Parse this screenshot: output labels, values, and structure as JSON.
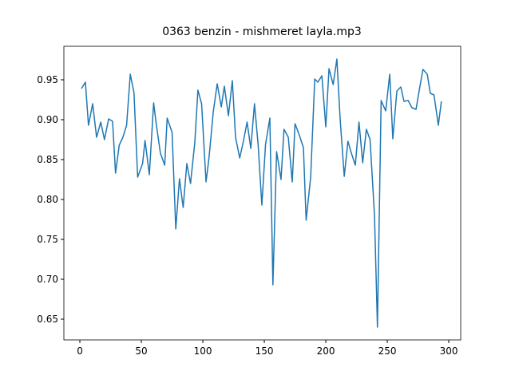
{
  "chart_data": {
    "type": "line",
    "title": "0363 benzin - mishmeret layla.mp3",
    "x": [
      1.3,
      4.5,
      7,
      10.4,
      13.6,
      17,
      20,
      23.4,
      26.6,
      29,
      32,
      35,
      38,
      41,
      44,
      47,
      51,
      53,
      56.5,
      60,
      62,
      65.5,
      69,
      71,
      75,
      78,
      81,
      84,
      87,
      90,
      93.5,
      96,
      99,
      102.6,
      105,
      108.5,
      111.7,
      115,
      117.5,
      120.8,
      124,
      126.6,
      130,
      133,
      136,
      139,
      142,
      145,
      148,
      151,
      154.5,
      157,
      160,
      163.6,
      166,
      169.5,
      172.7,
      175,
      178.6,
      181.8,
      184,
      187.7,
      191,
      193.5,
      196.8,
      200,
      202.6,
      206,
      209,
      211.7,
      215,
      218,
      220.8,
      224,
      227,
      230,
      233,
      236,
      239.6,
      242,
      245,
      248.7,
      252,
      254.5,
      257.8,
      261,
      263.6,
      267,
      270,
      273.4,
      276,
      279,
      282.5,
      285,
      288,
      291.5,
      294
    ],
    "series": [
      {
        "color": "#1f77b4",
        "values": [
          0.939,
          0.947,
          0.893,
          0.92,
          0.878,
          0.897,
          0.875,
          0.901,
          0.898,
          0.833,
          0.868,
          0.878,
          0.893,
          0.957,
          0.934,
          0.828,
          0.845,
          0.874,
          0.831,
          0.921,
          0.896,
          0.858,
          0.843,
          0.902,
          0.884,
          0.763,
          0.826,
          0.79,
          0.845,
          0.82,
          0.872,
          0.937,
          0.92,
          0.822,
          0.852,
          0.91,
          0.945,
          0.916,
          0.942,
          0.905,
          0.949,
          0.878,
          0.852,
          0.873,
          0.897,
          0.864,
          0.92,
          0.868,
          0.793,
          0.869,
          0.902,
          0.693,
          0.86,
          0.825,
          0.888,
          0.878,
          0.822,
          0.895,
          0.88,
          0.865,
          0.774,
          0.828,
          0.951,
          0.947,
          0.955,
          0.891,
          0.964,
          0.944,
          0.976,
          0.9,
          0.829,
          0.873,
          0.858,
          0.843,
          0.897,
          0.846,
          0.888,
          0.875,
          0.78,
          0.64,
          0.924,
          0.911,
          0.957,
          0.876,
          0.936,
          0.941,
          0.923,
          0.924,
          0.915,
          0.913,
          0.937,
          0.963,
          0.957,
          0.933,
          0.931,
          0.893,
          0.923
        ]
      }
    ],
    "xlim": [
      -13,
      309.7
    ],
    "xticks": [
      0,
      50,
      100,
      150,
      200,
      250,
      300
    ],
    "ylim": [
      0.624,
      0.992
    ],
    "yticks": [
      0.65,
      {
        "value": 0.7,
        "label": "0.70"
      },
      0.75,
      {
        "value": 0.8,
        "label": "0.80"
      },
      0.85,
      {
        "value": 0.9,
        "label": "0.90"
      },
      0.95
    ],
    "grid": false
  }
}
